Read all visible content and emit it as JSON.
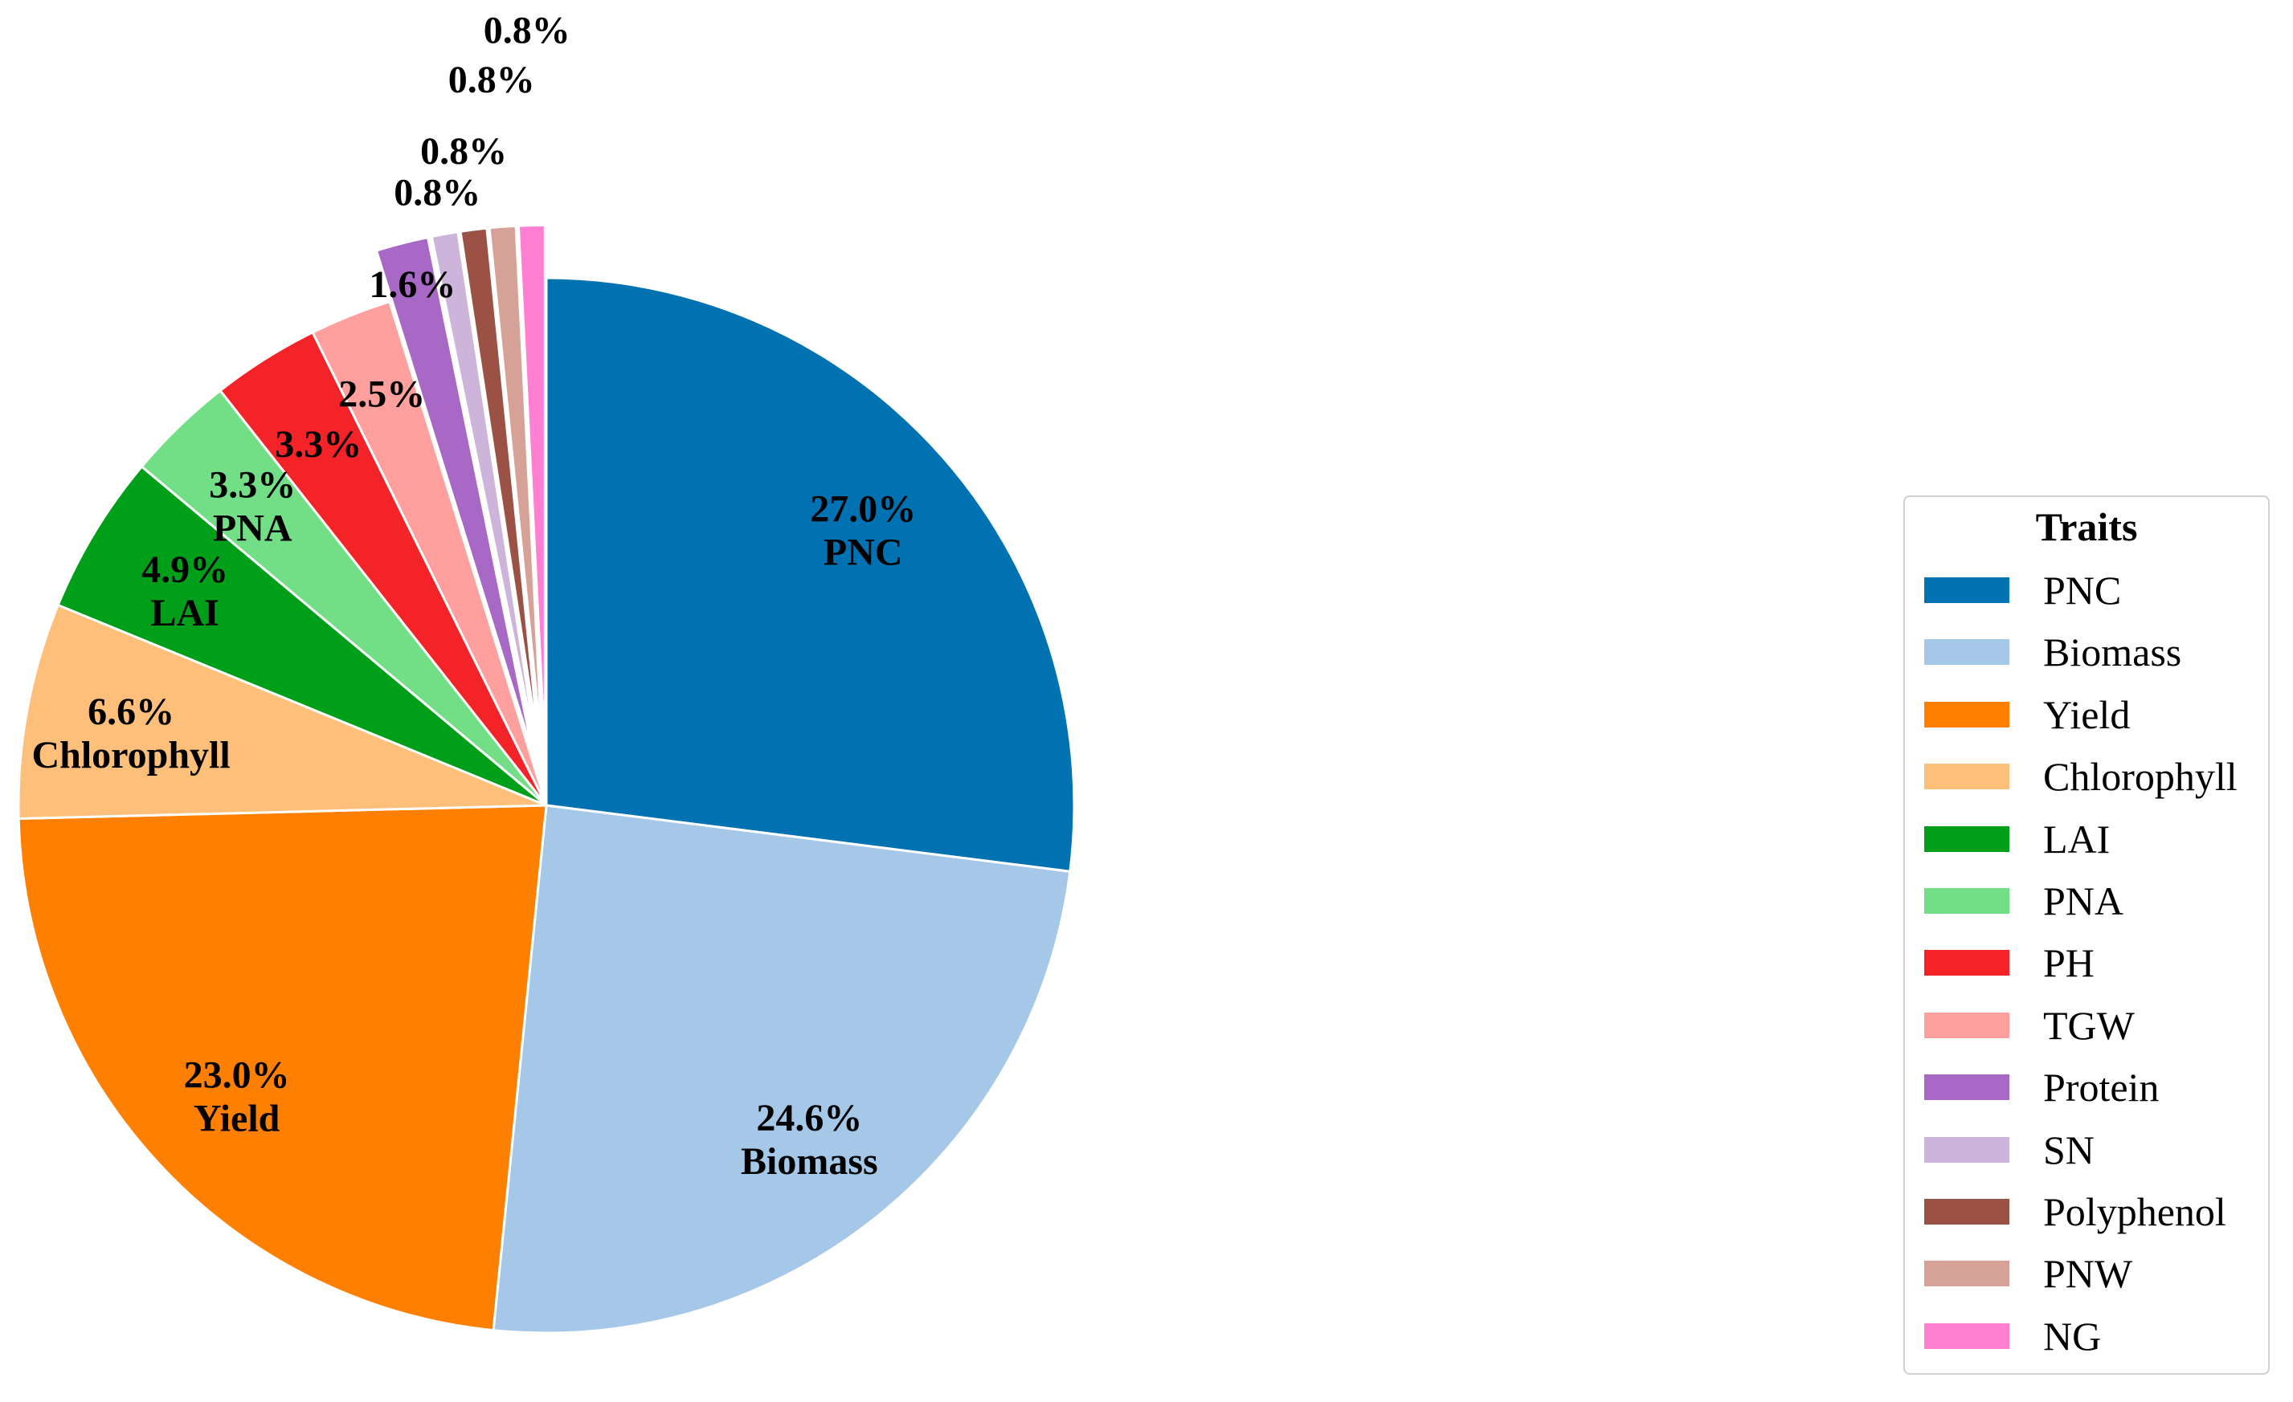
{
  "chart_data": {
    "type": "pie",
    "legend_title": "Traits",
    "legend_position": "right",
    "start_angle": "90 degrees (top), clockwise",
    "slices": [
      {
        "label": "PNC",
        "value": 27.0,
        "display": "27.0%",
        "color": "#0072B2",
        "exploded": false,
        "show_name": true
      },
      {
        "label": "Biomass",
        "value": 24.6,
        "display": "24.6%",
        "color": "#A6C8E8",
        "exploded": false,
        "show_name": true
      },
      {
        "label": "Yield",
        "value": 23.0,
        "display": "23.0%",
        "color": "#FF7F00",
        "exploded": false,
        "show_name": true
      },
      {
        "label": "Chlorophyll",
        "value": 6.6,
        "display": "6.6%",
        "color": "#FDBF7A",
        "exploded": false,
        "show_name": true
      },
      {
        "label": "LAI",
        "value": 4.9,
        "display": "4.9%",
        "color": "#009F1A",
        "exploded": false,
        "show_name": true
      },
      {
        "label": "PNA",
        "value": 3.3,
        "display": "3.3%",
        "color": "#72DF86",
        "exploded": false,
        "show_name": true
      },
      {
        "label": "PH",
        "value": 3.3,
        "display": "3.3%",
        "color": "#F32328",
        "exploded": false,
        "show_name": false
      },
      {
        "label": "TGW",
        "value": 2.5,
        "display": "2.5%",
        "color": "#FF9F9E",
        "exploded": false,
        "show_name": false
      },
      {
        "label": "Protein",
        "value": 1.6,
        "display": "1.6%",
        "color": "#A768C6",
        "exploded": true,
        "show_name": false
      },
      {
        "label": "SN",
        "value": 0.8,
        "display": "0.8%",
        "color": "#CDB4DA",
        "exploded": true,
        "show_name": false
      },
      {
        "label": "Polyphenol",
        "value": 0.8,
        "display": "0.8%",
        "color": "#9B5245",
        "exploded": true,
        "show_name": false
      },
      {
        "label": "PNW",
        "value": 0.8,
        "display": "0.8%",
        "color": "#D6A297",
        "exploded": true,
        "show_name": false
      },
      {
        "label": "NG",
        "value": 0.8,
        "display": "0.8%",
        "color": "#FF7FD2",
        "exploded": true,
        "show_name": false
      }
    ]
  }
}
